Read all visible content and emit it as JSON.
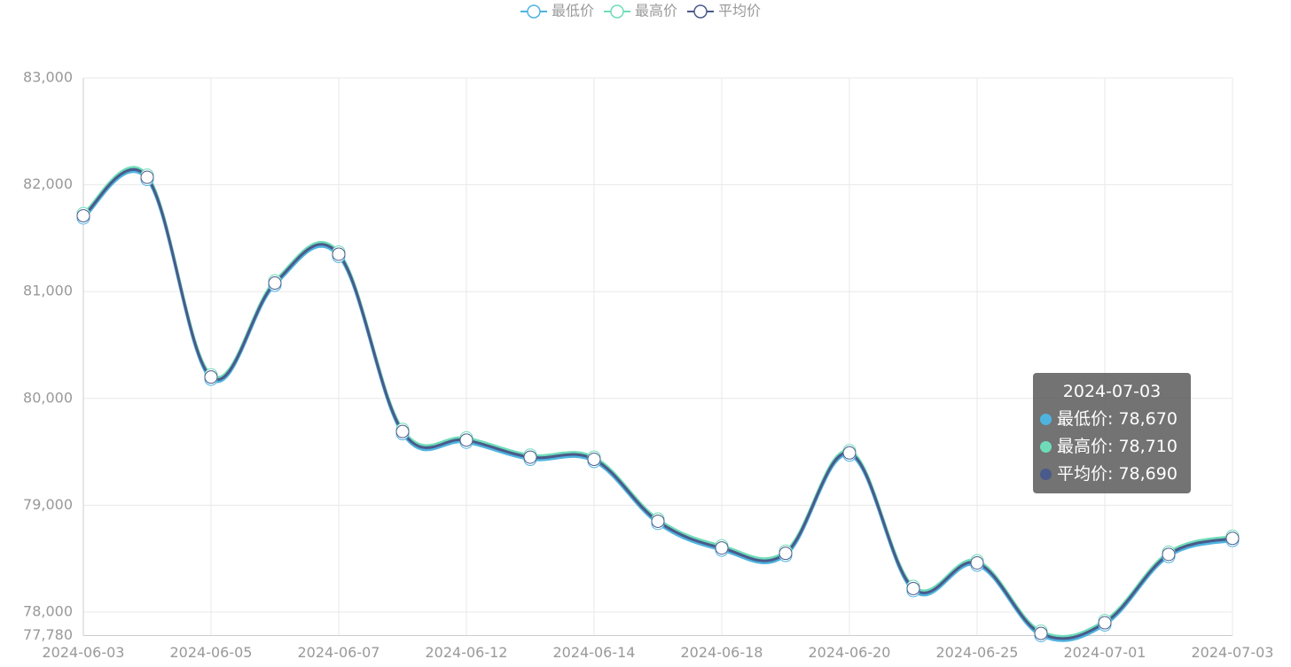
{
  "chart_data": {
    "type": "line",
    "categories": [
      "2024-06-03",
      null,
      "2024-06-05",
      null,
      "2024-06-07",
      null,
      "2024-06-12",
      null,
      "2024-06-14",
      null,
      "2024-06-18",
      null,
      "2024-06-20",
      null,
      "2024-06-25",
      null,
      "2024-07-01",
      null,
      "2024-07-03"
    ],
    "series": [
      {
        "name": "最低价",
        "color": "#4fb3e0",
        "values": [
          81690,
          82050,
          80180,
          81060,
          81330,
          79670,
          79590,
          79430,
          79410,
          78830,
          78580,
          78530,
          79470,
          78200,
          78440,
          77780,
          77880,
          78520,
          78670
        ]
      },
      {
        "name": "最高价",
        "color": "#6fdcb9",
        "values": [
          81730,
          82090,
          80220,
          81100,
          81370,
          79710,
          79630,
          79470,
          79450,
          78870,
          78620,
          78570,
          79510,
          78240,
          78480,
          77820,
          77920,
          78560,
          78710
        ]
      },
      {
        "name": "平均价",
        "color": "#4a5a8a",
        "values": [
          81710,
          82070,
          80200,
          81080,
          81350,
          79690,
          79610,
          79450,
          79430,
          78850,
          78600,
          78550,
          79490,
          78220,
          78460,
          77800,
          77900,
          78540,
          78690
        ]
      }
    ],
    "ylim": [
      77780,
      83000
    ],
    "yticks": [
      {
        "value": 77780,
        "label": "77,780"
      },
      {
        "value": 78000,
        "label": "78,000"
      },
      {
        "value": 79000,
        "label": "79,000"
      },
      {
        "value": 80000,
        "label": "80,000"
      },
      {
        "value": 81000,
        "label": "81,000"
      },
      {
        "value": 82000,
        "label": "82,000"
      },
      {
        "value": 83000,
        "label": "83,000"
      }
    ],
    "grid": true,
    "legend": "top",
    "tooltip": {
      "title": "2024-07-03",
      "values": [
        {
          "value": 78670,
          "label": "78,670"
        },
        {
          "value": 78710,
          "label": "78,710"
        },
        {
          "value": 78690,
          "label": "78,690"
        }
      ]
    }
  }
}
